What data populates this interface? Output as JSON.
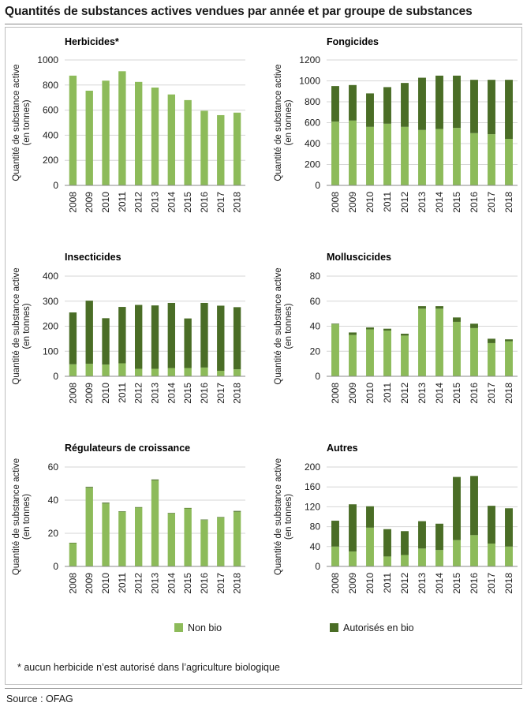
{
  "title": "Quantités de substances actives vendues par année et par groupe de substances",
  "legend": {
    "non_bio": "Non bio",
    "bio": "Autorisés en bio"
  },
  "colors": {
    "non_bio": "#8dbb5a",
    "bio": "#4a6d26",
    "grid": "#d6d6d6",
    "axis": "#888888"
  },
  "footnote": "* aucun herbicide n’est autorisé dans l’agriculture biologique",
  "source": "Source : OFAG",
  "chart_data": [
    {
      "type": "bar",
      "stacked": true,
      "title": "Herbicides*",
      "ylabel": [
        "Quantité de substance active",
        "(en tonnes)"
      ],
      "categories": [
        "2008",
        "2009",
        "2010",
        "2011",
        "2012",
        "2013",
        "2014",
        "2015",
        "2016",
        "2017",
        "2018"
      ],
      "ylim": [
        0,
        1000
      ],
      "yticks": [
        0,
        200,
        400,
        600,
        800,
        1000
      ],
      "series": [
        {
          "name": "Non bio",
          "values": [
            875,
            755,
            835,
            910,
            825,
            780,
            725,
            680,
            595,
            560,
            580
          ]
        },
        {
          "name": "Autorisés en bio",
          "values": [
            0,
            0,
            0,
            0,
            0,
            0,
            0,
            0,
            0,
            0,
            0
          ]
        }
      ]
    },
    {
      "type": "bar",
      "stacked": true,
      "title": "Fongicides",
      "ylabel": [
        "Quantité de substance active",
        "(en tonnes)"
      ],
      "categories": [
        "2008",
        "2009",
        "2010",
        "2011",
        "2012",
        "2013",
        "2014",
        "2015",
        "2016",
        "2017",
        "2018"
      ],
      "ylim": [
        0,
        1200
      ],
      "yticks": [
        0,
        200,
        400,
        600,
        800,
        1000,
        1200
      ],
      "series": [
        {
          "name": "Non bio",
          "values": [
            610,
            620,
            560,
            590,
            560,
            530,
            540,
            550,
            500,
            490,
            445
          ]
        },
        {
          "name": "Autorisés en bio",
          "values": [
            340,
            340,
            320,
            350,
            420,
            500,
            510,
            500,
            510,
            520,
            565
          ]
        }
      ]
    },
    {
      "type": "bar",
      "stacked": true,
      "title": "Insecticides",
      "ylabel": [
        "Quantité de substance active",
        "(en tonnes)"
      ],
      "categories": [
        "2008",
        "2009",
        "2010",
        "2011",
        "2012",
        "2013",
        "2014",
        "2015",
        "2016",
        "2017",
        "2018"
      ],
      "ylim": [
        0,
        400
      ],
      "yticks": [
        0,
        100,
        200,
        300,
        400
      ],
      "series": [
        {
          "name": "Non bio",
          "values": [
            48,
            50,
            47,
            52,
            30,
            30,
            33,
            33,
            35,
            22,
            28
          ]
        },
        {
          "name": "Autorisés en bio",
          "values": [
            207,
            252,
            185,
            225,
            255,
            253,
            260,
            198,
            258,
            260,
            248
          ]
        }
      ]
    },
    {
      "type": "bar",
      "stacked": true,
      "title": "Molluscicides",
      "ylabel": [
        "Quantité de substance active",
        "(en tonnes)"
      ],
      "categories": [
        "2008",
        "2009",
        "2010",
        "2011",
        "2012",
        "2013",
        "2014",
        "2015",
        "2016",
        "2017",
        "2018"
      ],
      "ylim": [
        0,
        80
      ],
      "yticks": [
        0,
        20,
        40,
        60,
        80
      ],
      "series": [
        {
          "name": "Non bio",
          "values": [
            41.5,
            33,
            37.5,
            36.5,
            32.5,
            54,
            54,
            43.5,
            38.5,
            26.5,
            28
          ]
        },
        {
          "name": "Autorisés en bio",
          "values": [
            0.5,
            2,
            1.5,
            1.5,
            1.5,
            2,
            2,
            3.5,
            3.5,
            3.5,
            1.5
          ]
        }
      ]
    },
    {
      "type": "bar",
      "stacked": true,
      "title": "Régulateurs de croissance",
      "ylabel": [
        "Quantité de substance active",
        "(en tonnes)"
      ],
      "categories": [
        "2008",
        "2009",
        "2010",
        "2011",
        "2012",
        "2013",
        "2014",
        "2015",
        "2016",
        "2017",
        "2018"
      ],
      "ylim": [
        0,
        60
      ],
      "yticks": [
        0,
        20,
        40,
        60
      ],
      "series": [
        {
          "name": "Non bio",
          "values": [
            14,
            47.5,
            38,
            33,
            35.5,
            52,
            32,
            35,
            28,
            29.5,
            33
          ]
        },
        {
          "name": "Autorisés en bio",
          "values": [
            0.3,
            0.5,
            0.5,
            0.3,
            0.3,
            0.5,
            0.3,
            0.3,
            0.3,
            0.3,
            0.5
          ]
        }
      ]
    },
    {
      "type": "bar",
      "stacked": true,
      "title": "Autres",
      "ylabel": [
        "Quantité de substance active",
        "(en tonnes)"
      ],
      "categories": [
        "2008",
        "2009",
        "2010",
        "2011",
        "2012",
        "2013",
        "2014",
        "2015",
        "2016",
        "2017",
        "2018"
      ],
      "ylim": [
        0,
        200
      ],
      "yticks": [
        0,
        40,
        80,
        120,
        160,
        200
      ],
      "series": [
        {
          "name": "Non bio",
          "values": [
            40,
            30,
            78,
            20,
            23,
            36,
            33,
            53,
            63,
            46,
            40
          ]
        },
        {
          "name": "Autorisés en bio",
          "values": [
            52,
            95,
            43,
            55,
            48,
            55,
            53,
            127,
            119,
            76,
            77
          ]
        }
      ]
    }
  ]
}
